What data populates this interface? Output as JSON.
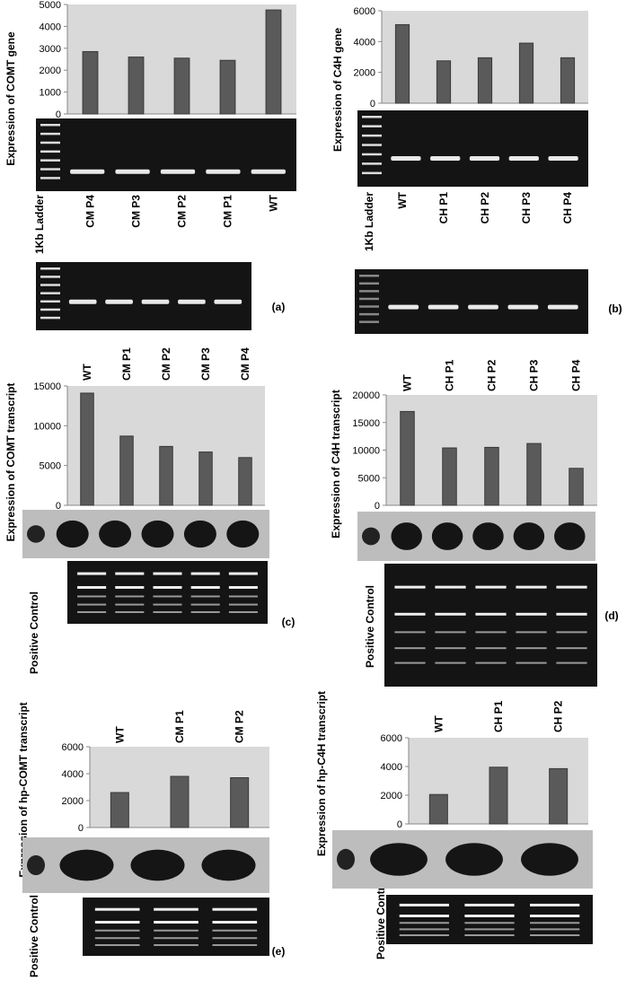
{
  "chart_data": [
    {
      "type": "bar",
      "panel": "(a)",
      "ylabel": "Expression of COMT gene",
      "ladder_label": "1Kb Ladder",
      "categories": [
        "CM P4",
        "CM P3",
        "CM P2",
        "CM P1",
        "WT"
      ],
      "values": [
        2850,
        2600,
        2550,
        2450,
        4750
      ],
      "color": "#5a5a5a",
      "ylim": [
        0,
        5000
      ],
      "yticks": [
        0,
        1000,
        2000,
        3000,
        4000,
        5000
      ]
    },
    {
      "type": "bar",
      "panel": "(b)",
      "ylabel": "Expression of C4H gene",
      "ladder_label": "1Kb Ladder",
      "categories": [
        "WT",
        "CH P1",
        "CH P2",
        "CH P3",
        "CH P4"
      ],
      "values": [
        5100,
        2750,
        2950,
        3900,
        2950
      ],
      "color": "#5a5a5a",
      "ylim": [
        0,
        6000
      ],
      "yticks": [
        0,
        2000,
        4000,
        6000
      ]
    },
    {
      "type": "bar",
      "panel": "(c)",
      "ylabel": "Expression of COMT transcript",
      "control_label": "Positive Control",
      "categories": [
        "WT",
        "CM P1",
        "CM P2",
        "CM P3",
        "CM P4"
      ],
      "values": [
        14100,
        8700,
        7400,
        6700,
        6000
      ],
      "color": "#5a5a5a",
      "ylim": [
        0,
        15000
      ],
      "yticks": [
        0,
        5000,
        10000,
        15000
      ]
    },
    {
      "type": "bar",
      "panel": "(d)",
      "ylabel": "Expression of C4H transcript",
      "control_label": "Positive Control",
      "categories": [
        "WT",
        "CH P1",
        "CH P2",
        "CH P3",
        "CH P4"
      ],
      "values": [
        17000,
        10400,
        10500,
        11200,
        6700
      ],
      "color": "#5a5a5a",
      "ylim": [
        0,
        20000
      ],
      "yticks": [
        0,
        5000,
        10000,
        15000,
        20000
      ]
    },
    {
      "type": "bar",
      "panel": "(e)",
      "ylabel": "Expression of hp-COMT transcript",
      "control_label": "Positive Control",
      "categories": [
        "WT",
        "CM P1",
        "CM P2"
      ],
      "values": [
        2600,
        3800,
        3700
      ],
      "color": "#5a5a5a",
      "ylim": [
        0,
        6000
      ],
      "yticks": [
        0,
        2000,
        4000,
        6000
      ]
    },
    {
      "type": "bar",
      "ylabel": "Expression of hp-C4H transcript",
      "control_label": "Positive Control",
      "categories": [
        "WT",
        "CH P1",
        "CH P2"
      ],
      "values": [
        2050,
        3950,
        3850
      ],
      "color": "#5a5a5a",
      "ylim": [
        0,
        6000
      ],
      "yticks": [
        0,
        2000,
        4000,
        6000
      ]
    }
  ]
}
